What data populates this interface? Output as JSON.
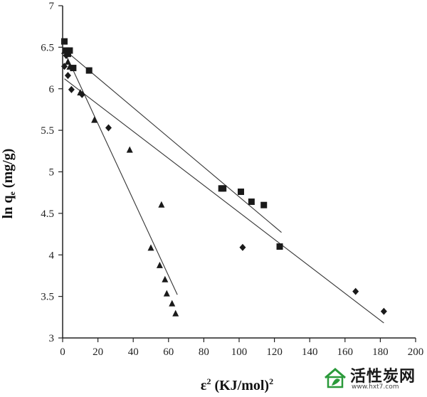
{
  "chart_data": {
    "type": "scatter",
    "title": "",
    "xlabel": "ε² (KJ/mol)²",
    "ylabel": "ln qe (mg/g)",
    "xlim": [
      0,
      200
    ],
    "ylim": [
      3,
      7
    ],
    "x_ticks": [
      "0",
      "20",
      "40",
      "60",
      "80",
      "100",
      "120",
      "140",
      "160",
      "180",
      "200"
    ],
    "y_ticks": [
      "3",
      "3.5",
      "4",
      "4.5",
      "5",
      "5.5",
      "6",
      "6.5",
      "7"
    ],
    "series": [
      {
        "name": "squares",
        "marker": "square",
        "points": [
          [
            1,
            6.57
          ],
          [
            2,
            6.46
          ],
          [
            3,
            6.42
          ],
          [
            4,
            6.46
          ],
          [
            6,
            6.25
          ],
          [
            15,
            6.22
          ],
          [
            90,
            4.8
          ],
          [
            91,
            4.8
          ],
          [
            101,
            4.76
          ],
          [
            107,
            4.64
          ],
          [
            114,
            4.6
          ],
          [
            123,
            4.1
          ]
        ],
        "fit": [
          [
            1,
            6.47
          ],
          [
            124,
            4.27
          ]
        ]
      },
      {
        "name": "diamonds",
        "marker": "diamond",
        "points": [
          [
            1,
            6.27
          ],
          [
            2,
            6.4
          ],
          [
            3,
            6.16
          ],
          [
            5,
            5.99
          ],
          [
            11,
            5.93
          ],
          [
            26,
            5.53
          ],
          [
            102,
            4.09
          ],
          [
            166,
            3.56
          ],
          [
            182,
            3.32
          ]
        ],
        "fit": [
          [
            1,
            6.12
          ],
          [
            182,
            3.18
          ]
        ]
      },
      {
        "name": "triangles",
        "marker": "triangle",
        "points": [
          [
            1,
            6.45
          ],
          [
            3,
            6.32
          ],
          [
            4,
            6.26
          ],
          [
            10,
            5.95
          ],
          [
            18,
            5.62
          ],
          [
            38,
            5.26
          ],
          [
            56,
            4.6
          ],
          [
            50,
            4.08
          ],
          [
            55,
            3.87
          ],
          [
            58,
            3.7
          ],
          [
            59,
            3.53
          ],
          [
            62,
            3.41
          ],
          [
            64,
            3.29
          ]
        ],
        "fit": [
          [
            1,
            6.45
          ],
          [
            65,
            3.52
          ]
        ]
      }
    ]
  },
  "watermark": {
    "title": "活性炭网",
    "url": "www.hxt7.com",
    "color": "#2a9a3a"
  }
}
